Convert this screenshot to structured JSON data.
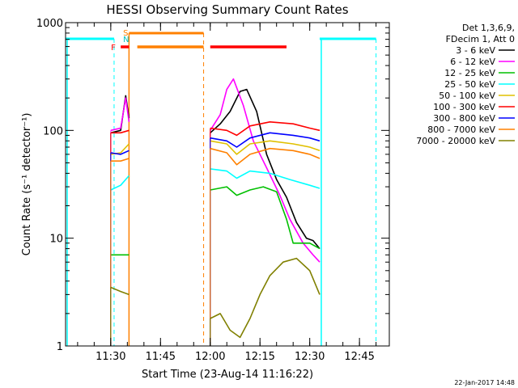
{
  "chart_data": {
    "type": "line",
    "title": "HESSI Observing Summary Count Rates",
    "xlabel": "Start Time (23-Aug-14 11:16:22)",
    "ylabel": "Count Rate (s⁻¹ detector⁻¹)",
    "yscale": "log",
    "ylim": [
      1,
      1000
    ],
    "xlim": [
      "11:16:22",
      "12:54:00"
    ],
    "x_ticks": [
      "11:30",
      "11:45",
      "12:00",
      "12:15",
      "12:30",
      "12:45"
    ],
    "y_ticks": [
      "1",
      "10",
      "100",
      "1000"
    ],
    "grid": false,
    "legend_position": "right",
    "legend_header": [
      "Det 1,3,6,9,",
      "FDecim 1, Att 0"
    ],
    "footer_date": "22-Jan-2017 14:48",
    "flags": [
      {
        "label": "F",
        "color": "#ff0000",
        "start": "11:33:00",
        "end": "11:35:30"
      },
      {
        "label": "S",
        "color": "#ff8000",
        "start": "11:38:00",
        "end": "11:58:00"
      },
      {
        "label": "F",
        "color": "#ff0000",
        "start": "12:00:00",
        "end": "12:23:00"
      }
    ],
    "flag_letters": {
      "F": "F",
      "S": "S",
      "N": "N"
    },
    "saa_spans": [
      [
        "11:16:22",
        "11:31:00"
      ],
      [
        "12:33:00",
        "12:50:00"
      ]
    ],
    "night_spans": [
      [
        "11:35:30",
        "11:58:00"
      ]
    ],
    "series": [
      {
        "name": "3 - 6 keV",
        "color": "#000000",
        "points": [
          [
            "11:30:00",
            95
          ],
          [
            "11:33:00",
            100
          ],
          [
            "11:34:30",
            210
          ],
          [
            "11:35:30",
            130
          ],
          [
            "12:00:00",
            95
          ],
          [
            "12:03:00",
            115
          ],
          [
            "12:06:00",
            150
          ],
          [
            "12:09:00",
            230
          ],
          [
            "12:11:00",
            240
          ],
          [
            "12:14:00",
            150
          ],
          [
            "12:17:00",
            60
          ],
          [
            "12:20:00",
            35
          ],
          [
            "12:23:00",
            24
          ],
          [
            "12:26:00",
            14
          ],
          [
            "12:29:00",
            10
          ],
          [
            "12:31:00",
            9.5
          ],
          [
            "12:33:00",
            8
          ]
        ]
      },
      {
        "name": "6 - 12 keV",
        "color": "#ff00ff",
        "points": [
          [
            "11:30:00",
            100
          ],
          [
            "11:33:00",
            105
          ],
          [
            "11:34:30",
            200
          ],
          [
            "11:35:30",
            120
          ],
          [
            "12:00:00",
            100
          ],
          [
            "12:03:00",
            140
          ],
          [
            "12:05:00",
            240
          ],
          [
            "12:07:00",
            300
          ],
          [
            "12:10:00",
            170
          ],
          [
            "12:13:00",
            80
          ],
          [
            "12:17:00",
            45
          ],
          [
            "12:21:00",
            25
          ],
          [
            "12:24:00",
            15
          ],
          [
            "12:28:00",
            9
          ],
          [
            "12:31:00",
            7
          ],
          [
            "12:33:00",
            6
          ]
        ]
      },
      {
        "name": "12 - 25 keV",
        "color": "#00c000",
        "points": [
          [
            "11:30:00",
            7
          ],
          [
            "11:33:00",
            7
          ],
          [
            "11:35:30",
            7
          ],
          [
            "12:00:00",
            28
          ],
          [
            "12:05:00",
            30
          ],
          [
            "12:08:00",
            25
          ],
          [
            "12:12:00",
            28
          ],
          [
            "12:16:00",
            30
          ],
          [
            "12:20:00",
            27
          ],
          [
            "12:23:00",
            15
          ],
          [
            "12:25:00",
            9
          ],
          [
            "12:30:00",
            9
          ],
          [
            "12:33:00",
            8
          ]
        ]
      },
      {
        "name": "25 - 50 keV",
        "color": "#00ffff",
        "points": [
          [
            "11:30:00",
            28
          ],
          [
            "11:33:00",
            31
          ],
          [
            "11:35:30",
            38
          ],
          [
            "12:00:00",
            44
          ],
          [
            "12:05:00",
            42
          ],
          [
            "12:08:00",
            36
          ],
          [
            "12:12:00",
            42
          ],
          [
            "12:18:00",
            40
          ],
          [
            "12:24:00",
            35
          ],
          [
            "12:30:00",
            31
          ],
          [
            "12:33:00",
            29
          ]
        ]
      },
      {
        "name": "50 - 100 keV",
        "color": "#e0c000",
        "points": [
          [
            "11:30:00",
            60
          ],
          [
            "11:33:00",
            62
          ],
          [
            "11:35:30",
            75
          ],
          [
            "12:00:00",
            80
          ],
          [
            "12:05:00",
            75
          ],
          [
            "12:08:00",
            60
          ],
          [
            "12:12:00",
            75
          ],
          [
            "12:18:00",
            80
          ],
          [
            "12:25:00",
            75
          ],
          [
            "12:30:00",
            70
          ],
          [
            "12:33:00",
            65
          ]
        ]
      },
      {
        "name": "100 - 300 keV",
        "color": "#ff0000",
        "points": [
          [
            "11:30:00",
            95
          ],
          [
            "11:33:00",
            95
          ],
          [
            "11:35:30",
            100
          ],
          [
            "12:00:00",
            105
          ],
          [
            "12:05:00",
            100
          ],
          [
            "12:08:00",
            90
          ],
          [
            "12:12:00",
            110
          ],
          [
            "12:18:00",
            120
          ],
          [
            "12:25:00",
            115
          ],
          [
            "12:30:00",
            105
          ],
          [
            "12:33:00",
            100
          ]
        ]
      },
      {
        "name": "300 - 800 keV",
        "color": "#0000ff",
        "points": [
          [
            "11:30:00",
            62
          ],
          [
            "11:33:00",
            60
          ],
          [
            "11:35:30",
            65
          ],
          [
            "12:00:00",
            85
          ],
          [
            "12:05:00",
            80
          ],
          [
            "12:08:00",
            70
          ],
          [
            "12:12:00",
            85
          ],
          [
            "12:18:00",
            95
          ],
          [
            "12:25:00",
            90
          ],
          [
            "12:30:00",
            85
          ],
          [
            "12:33:00",
            80
          ]
        ]
      },
      {
        "name": "800 - 7000 keV",
        "color": "#ff8000",
        "points": [
          [
            "11:30:00",
            52
          ],
          [
            "11:33:00",
            52
          ],
          [
            "11:35:30",
            55
          ],
          [
            "12:00:00",
            68
          ],
          [
            "12:05:00",
            62
          ],
          [
            "12:08:00",
            48
          ],
          [
            "12:12:00",
            60
          ],
          [
            "12:18:00",
            68
          ],
          [
            "12:25:00",
            65
          ],
          [
            "12:30:00",
            60
          ],
          [
            "12:33:00",
            55
          ]
        ]
      },
      {
        "name": "7000 - 20000 keV",
        "color": "#808000",
        "points": [
          [
            "11:30:00",
            3.5
          ],
          [
            "11:33:00",
            3.2
          ],
          [
            "11:35:30",
            3
          ],
          [
            "12:00:00",
            1.8
          ],
          [
            "12:03:00",
            2
          ],
          [
            "12:06:00",
            1.4
          ],
          [
            "12:09:00",
            1.2
          ],
          [
            "12:12:00",
            1.8
          ],
          [
            "12:15:00",
            3
          ],
          [
            "12:18:00",
            4.5
          ],
          [
            "12:22:00",
            6
          ],
          [
            "12:26:00",
            6.5
          ],
          [
            "12:30:00",
            5
          ],
          [
            "12:33:00",
            3
          ]
        ]
      }
    ]
  }
}
